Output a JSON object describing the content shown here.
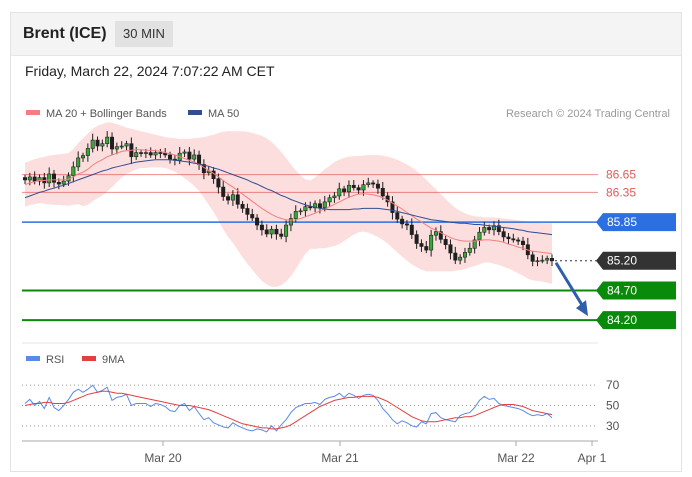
{
  "header": {
    "instrument": "Brent (ICE)",
    "timeframe": "30 MIN",
    "datetime": "Friday, March 22, 2024 7:07:22 AM CET"
  },
  "legend": {
    "ma20": {
      "label": "MA 20 + Bollinger Bands",
      "color": "#f08080"
    },
    "ma50": {
      "label": "MA 50",
      "color": "#2f4f8f"
    },
    "credit": "Research © 2024 Trading Central"
  },
  "chart_data": [
    {
      "type": "candlestick",
      "ylim": [
        83.9,
        87.4
      ],
      "x_ticks": [
        "Mar 20",
        "Mar 21",
        "Mar 22",
        "Apr 1"
      ],
      "levels": [
        {
          "value": 86.65,
          "label": "86.65",
          "kind": "resistance",
          "color": "#e05a5a"
        },
        {
          "value": 86.35,
          "label": "86.35",
          "kind": "resistance",
          "color": "#e05a5a"
        },
        {
          "value": 85.85,
          "label": "85.85",
          "kind": "pivot",
          "color": "#2c6fe0"
        },
        {
          "value": 85.2,
          "label": "85.20",
          "kind": "last-price",
          "color": "#333333"
        },
        {
          "value": 84.7,
          "label": "84.70",
          "kind": "support",
          "color": "#0a8a0a"
        },
        {
          "value": 84.2,
          "label": "84.20",
          "kind": "support",
          "color": "#0a8a0a"
        }
      ],
      "close": [
        86.56,
        86.61,
        86.54,
        86.6,
        86.51,
        86.66,
        86.52,
        86.49,
        86.54,
        86.63,
        86.78,
        86.93,
        86.97,
        87.09,
        87.23,
        87.13,
        87.17,
        87.28,
        87.08,
        87.12,
        87.13,
        87.17,
        86.95,
        87.02,
        87.01,
        87.02,
        86.98,
        87.02,
        87.01,
        86.98,
        86.91,
        86.89,
        87.01,
        87.03,
        86.91,
        86.98,
        86.82,
        86.68,
        86.71,
        86.58,
        86.44,
        86.28,
        86.22,
        86.31,
        86.15,
        86.08,
        85.98,
        85.92,
        85.8,
        85.72,
        85.65,
        85.73,
        85.65,
        85.61,
        85.8,
        85.91,
        86.03,
        86.04,
        86.11,
        86.09,
        86.16,
        86.09,
        86.19,
        86.26,
        86.29,
        86.41,
        86.36,
        86.47,
        86.43,
        86.39,
        86.48,
        86.51,
        86.49,
        86.42,
        86.29,
        86.19,
        86.01,
        85.9,
        85.82,
        85.8,
        85.64,
        85.49,
        85.44,
        85.38,
        85.63,
        85.69,
        85.56,
        85.47,
        85.33,
        85.21,
        85.26,
        85.34,
        85.41,
        85.55,
        85.68,
        85.76,
        85.72,
        85.79,
        85.69,
        85.6,
        85.57,
        85.55,
        85.53,
        85.47,
        85.3,
        85.19,
        85.2,
        85.21,
        85.24,
        85.2
      ],
      "ma20": [
        86.48,
        86.51,
        86.53,
        86.55,
        86.55,
        86.56,
        86.56,
        86.56,
        86.56,
        86.57,
        86.61,
        86.66,
        86.69,
        86.74,
        86.81,
        86.86,
        86.9,
        86.95,
        86.98,
        87.01,
        87.04,
        87.05,
        87.06,
        87.07,
        87.07,
        87.06,
        87.06,
        87.05,
        87.04,
        87.02,
        87.0,
        86.98,
        86.95,
        86.92,
        86.89,
        86.86,
        86.82,
        86.77,
        86.72,
        86.67,
        86.61,
        86.55,
        86.49,
        86.44,
        86.38,
        86.32,
        86.26,
        86.2,
        86.14,
        86.08,
        86.03,
        85.98,
        85.94,
        85.91,
        85.89,
        85.88,
        85.89,
        85.91,
        85.94,
        85.97,
        86.0,
        86.04,
        86.07,
        86.11,
        86.15,
        86.19,
        86.23,
        86.27,
        86.3,
        86.32,
        86.33,
        86.32,
        86.31,
        86.29,
        86.26,
        86.22,
        86.17,
        86.12,
        86.07,
        86.01,
        85.96,
        85.9,
        85.85,
        85.8,
        85.75,
        85.71,
        85.67,
        85.63,
        85.59,
        85.56,
        85.54,
        85.53,
        85.53,
        85.53,
        85.54,
        85.55,
        85.55,
        85.54,
        85.53,
        85.51,
        85.48,
        85.46,
        85.43,
        85.41,
        85.38,
        85.36,
        85.35,
        85.34,
        85.33,
        85.32
      ],
      "ma50": [
        86.26,
        86.29,
        86.32,
        86.35,
        86.37,
        86.4,
        86.42,
        86.45,
        86.47,
        86.5,
        86.53,
        86.56,
        86.59,
        86.62,
        86.65,
        86.68,
        86.71,
        86.73,
        86.76,
        86.78,
        86.8,
        86.82,
        86.84,
        86.86,
        86.87,
        86.88,
        86.89,
        86.9,
        86.9,
        86.9,
        86.9,
        86.89,
        86.88,
        86.87,
        86.86,
        86.84,
        86.83,
        86.81,
        86.79,
        86.76,
        86.74,
        86.71,
        86.68,
        86.65,
        86.62,
        86.59,
        86.56,
        86.52,
        86.49,
        86.45,
        86.41,
        86.38,
        86.34,
        86.3,
        86.27,
        86.23,
        86.2,
        86.17,
        86.14,
        86.12,
        86.1,
        86.08,
        86.07,
        86.06,
        86.06,
        86.06,
        86.06,
        86.06,
        86.07,
        86.07,
        86.08,
        86.08,
        86.08,
        86.08,
        86.07,
        86.06,
        86.05,
        86.03,
        86.01,
        85.99,
        85.97,
        85.95,
        85.93,
        85.91,
        85.89,
        85.88,
        85.87,
        85.86,
        85.85,
        85.84,
        85.83,
        85.83,
        85.82,
        85.81,
        85.81,
        85.8,
        85.79,
        85.78,
        85.77,
        85.76,
        85.75,
        85.74,
        85.72,
        85.71,
        85.69,
        85.68,
        85.67,
        85.66,
        85.65,
        85.64
      ],
      "bb_upper": [
        86.85,
        86.88,
        86.91,
        86.93,
        86.95,
        86.97,
        86.98,
        86.99,
        87.0,
        87.01,
        87.08,
        87.18,
        87.26,
        87.34,
        87.42,
        87.47,
        87.5,
        87.53,
        87.52,
        87.5,
        87.47,
        87.44,
        87.42,
        87.4,
        87.38,
        87.36,
        87.34,
        87.32,
        87.3,
        87.28,
        87.27,
        87.26,
        87.25,
        87.25,
        87.25,
        87.26,
        87.27,
        87.28,
        87.3,
        87.32,
        87.35,
        87.37,
        87.38,
        87.38,
        87.38,
        87.38,
        87.37,
        87.35,
        87.33,
        87.3,
        87.26,
        87.2,
        87.12,
        87.03,
        86.93,
        86.82,
        86.72,
        86.63,
        86.57,
        86.55,
        86.6,
        86.67,
        86.74,
        86.8,
        86.86,
        86.9,
        86.93,
        86.95,
        86.96,
        86.96,
        86.97,
        86.98,
        86.98,
        86.98,
        86.97,
        86.95,
        86.93,
        86.9,
        86.86,
        86.82,
        86.77,
        86.71,
        86.64,
        86.56,
        86.48,
        86.4,
        86.32,
        86.24,
        86.16,
        86.09,
        86.04,
        86.0,
        85.97,
        85.95,
        85.94,
        85.93,
        85.93,
        85.93,
        85.92,
        85.91,
        85.9,
        85.89,
        85.88,
        85.87,
        85.86,
        85.85,
        85.84,
        85.83,
        85.83,
        85.83
      ],
      "bb_lower": [
        86.11,
        86.14,
        86.15,
        86.17,
        86.16,
        86.15,
        86.14,
        86.14,
        86.13,
        86.13,
        86.14,
        86.15,
        86.12,
        86.14,
        86.2,
        86.25,
        86.3,
        86.37,
        86.44,
        86.52,
        86.6,
        86.66,
        86.7,
        86.74,
        86.76,
        86.76,
        86.77,
        86.77,
        86.77,
        86.76,
        86.73,
        86.7,
        86.65,
        86.59,
        86.53,
        86.46,
        86.38,
        86.26,
        86.14,
        86.02,
        85.88,
        85.73,
        85.6,
        85.5,
        85.38,
        85.26,
        85.15,
        85.05,
        84.95,
        84.86,
        84.8,
        84.76,
        84.76,
        84.79,
        84.85,
        84.94,
        85.06,
        85.19,
        85.32,
        85.4,
        85.4,
        85.41,
        85.41,
        85.43,
        85.45,
        85.48,
        85.53,
        85.59,
        85.64,
        85.68,
        85.69,
        85.67,
        85.64,
        85.6,
        85.55,
        85.49,
        85.42,
        85.34,
        85.27,
        85.2,
        85.14,
        85.09,
        85.05,
        85.02,
        85.02,
        85.02,
        85.02,
        85.02,
        85.02,
        85.03,
        85.04,
        85.06,
        85.09,
        85.11,
        85.14,
        85.17,
        85.17,
        85.15,
        85.13,
        85.1,
        85.07,
        85.03,
        84.99,
        84.95,
        84.9,
        84.87,
        84.86,
        84.85,
        84.83,
        84.81
      ]
    },
    {
      "type": "line",
      "legend": [
        {
          "name": "RSI",
          "color": "#5a8ae8"
        },
        {
          "name": "9MA",
          "color": "#e04040"
        }
      ],
      "ylim": [
        20,
        80
      ],
      "y_ticks": [
        "70",
        "50",
        "30"
      ],
      "series": [
        {
          "name": "RSI",
          "color": "#5a8ae8",
          "values": [
            52,
            56,
            50,
            54,
            47,
            58,
            48,
            45,
            50,
            56,
            63,
            66,
            63,
            66,
            70,
            63,
            65,
            68,
            55,
            58,
            59,
            61,
            50,
            52,
            52,
            52,
            49,
            52,
            51,
            49,
            45,
            44,
            50,
            52,
            45,
            49,
            42,
            36,
            38,
            33,
            31,
            29,
            28,
            33,
            30,
            28,
            26,
            25,
            27,
            26,
            24,
            30,
            25,
            31,
            36,
            43,
            48,
            50,
            52,
            52,
            53,
            51,
            56,
            58,
            59,
            62,
            58,
            62,
            60,
            57,
            60,
            61,
            60,
            55,
            47,
            42,
            36,
            32,
            35,
            33,
            30,
            29,
            34,
            32,
            42,
            43,
            38,
            36,
            35,
            34,
            40,
            42,
            43,
            48,
            55,
            59,
            56,
            57,
            52,
            50,
            49,
            48,
            47,
            45,
            42,
            40,
            41,
            40,
            42,
            38
          ]
        },
        {
          "name": "9MA",
          "color": "#e04040",
          "values": [
            50,
            51,
            52,
            52,
            53,
            53,
            52,
            52,
            52,
            53,
            55,
            57,
            59,
            61,
            62,
            63,
            64,
            64,
            63,
            62,
            62,
            61,
            60,
            59,
            58,
            57,
            56,
            55,
            54,
            53,
            52,
            51,
            50,
            50,
            50,
            49,
            48,
            47,
            46,
            44,
            42,
            40,
            38,
            36,
            34,
            32,
            31,
            30,
            29,
            28,
            28,
            27,
            27,
            28,
            29,
            31,
            34,
            37,
            40,
            43,
            46,
            49,
            51,
            53,
            55,
            56,
            57,
            58,
            58,
            59,
            59,
            59,
            59,
            58,
            56,
            54,
            51,
            48,
            45,
            42,
            39,
            37,
            35,
            34,
            34,
            34,
            35,
            36,
            37,
            38,
            38,
            39,
            39,
            40,
            42,
            44,
            46,
            48,
            50,
            51,
            51,
            51,
            50,
            49,
            47,
            45,
            44,
            43,
            42,
            41
          ]
        }
      ]
    }
  ]
}
